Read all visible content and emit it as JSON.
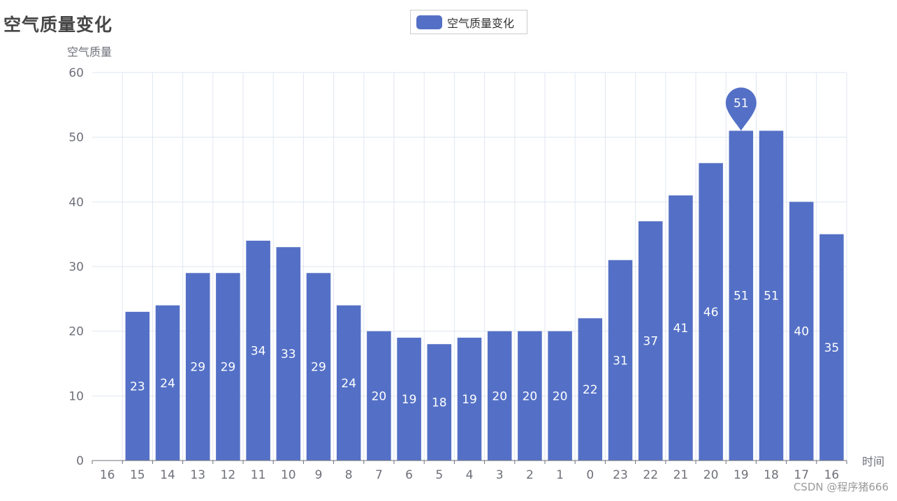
{
  "title": "空气质量变化",
  "legend": {
    "label": "空气质量变化",
    "color": "#5470c6"
  },
  "watermark": "CSDN @程序猪666",
  "chart_data": {
    "type": "bar",
    "title": "空气质量变化",
    "xlabel": "时间",
    "ylabel": "空气质量",
    "ylim": [
      0,
      60
    ],
    "yticks": [
      0,
      10,
      20,
      30,
      40,
      50,
      60
    ],
    "grid": true,
    "legend_position": "top-center",
    "categories": [
      "16",
      "15",
      "14",
      "13",
      "12",
      "11",
      "10",
      "9",
      "8",
      "7",
      "6",
      "5",
      "4",
      "3",
      "2",
      "1",
      "0",
      "23",
      "22",
      "21",
      "20",
      "19",
      "18",
      "17",
      "16"
    ],
    "series": [
      {
        "name": "空气质量变化",
        "color": "#5470c6",
        "values": [
          null,
          23,
          24,
          29,
          29,
          34,
          33,
          29,
          24,
          20,
          19,
          18,
          19,
          20,
          20,
          20,
          22,
          31,
          37,
          41,
          46,
          51,
          51,
          40,
          35
        ]
      }
    ],
    "mark_point": {
      "category_index": 21,
      "value": 51,
      "label": "51"
    }
  }
}
